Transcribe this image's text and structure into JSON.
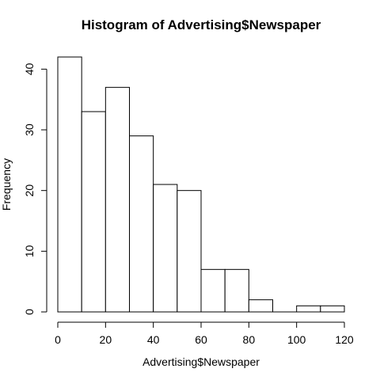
{
  "chart_data": {
    "type": "bar",
    "title": "Histogram of Advertising$Newspaper",
    "xlabel": "Advertising$Newspaper",
    "ylabel": "Frequency",
    "bins": [
      {
        "from": 0,
        "to": 10,
        "count": 42
      },
      {
        "from": 10,
        "to": 20,
        "count": 33
      },
      {
        "from": 20,
        "to": 30,
        "count": 37
      },
      {
        "from": 30,
        "to": 40,
        "count": 29
      },
      {
        "from": 40,
        "to": 50,
        "count": 21
      },
      {
        "from": 50,
        "to": 60,
        "count": 20
      },
      {
        "from": 60,
        "to": 70,
        "count": 7
      },
      {
        "from": 70,
        "to": 80,
        "count": 7
      },
      {
        "from": 80,
        "to": 90,
        "count": 2
      },
      {
        "from": 90,
        "to": 100,
        "count": 0
      },
      {
        "from": 100,
        "to": 110,
        "count": 1
      },
      {
        "from": 110,
        "to": 120,
        "count": 1
      }
    ],
    "xlim": [
      0,
      120
    ],
    "ylim": [
      0,
      42
    ],
    "x_ticks": [
      0,
      20,
      40,
      60,
      80,
      100,
      120
    ],
    "y_ticks": [
      0,
      10,
      20,
      30,
      40
    ],
    "grid": false,
    "legend": "none"
  }
}
